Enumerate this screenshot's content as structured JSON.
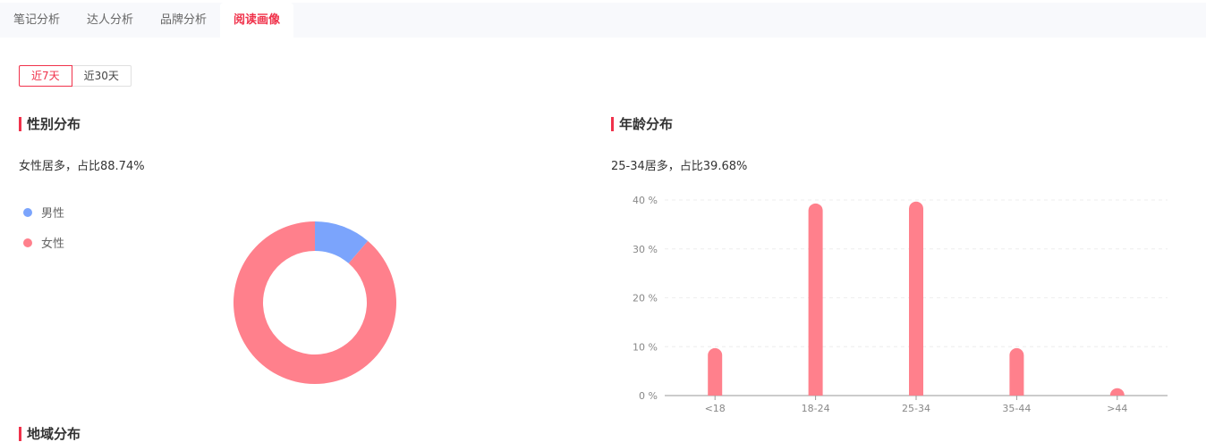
{
  "tabs": [
    {
      "label": "笔记分析"
    },
    {
      "label": "达人分析"
    },
    {
      "label": "品牌分析"
    },
    {
      "label": "阅读画像"
    }
  ],
  "range": {
    "options": [
      "近7天",
      "近30天"
    ],
    "selected": "近7天"
  },
  "gender": {
    "title": "性别分布",
    "summary": "女性居多，占比88.74%"
  },
  "age": {
    "title": "年龄分布",
    "summary": "25-34居多，占比39.68%"
  },
  "region": {
    "title": "地域分布"
  },
  "chart_data": [
    {
      "type": "pie",
      "donut": true,
      "legend_position": "left",
      "categories": [
        "男性",
        "女性"
      ],
      "values": [
        11.26,
        88.74
      ],
      "colors": [
        "#7ba4fc",
        "#ff808c"
      ]
    },
    {
      "type": "bar",
      "categories": [
        "<18",
        "18-24",
        "25-34",
        "35-44",
        ">44"
      ],
      "values": [
        9.7,
        39.3,
        39.68,
        9.7,
        1.5
      ],
      "yticks": [
        "0 %",
        "10 %",
        "20 %",
        "30 %",
        "40 %"
      ],
      "ylim": [
        0,
        40
      ],
      "grid": true,
      "color": "#ff808c"
    }
  ]
}
